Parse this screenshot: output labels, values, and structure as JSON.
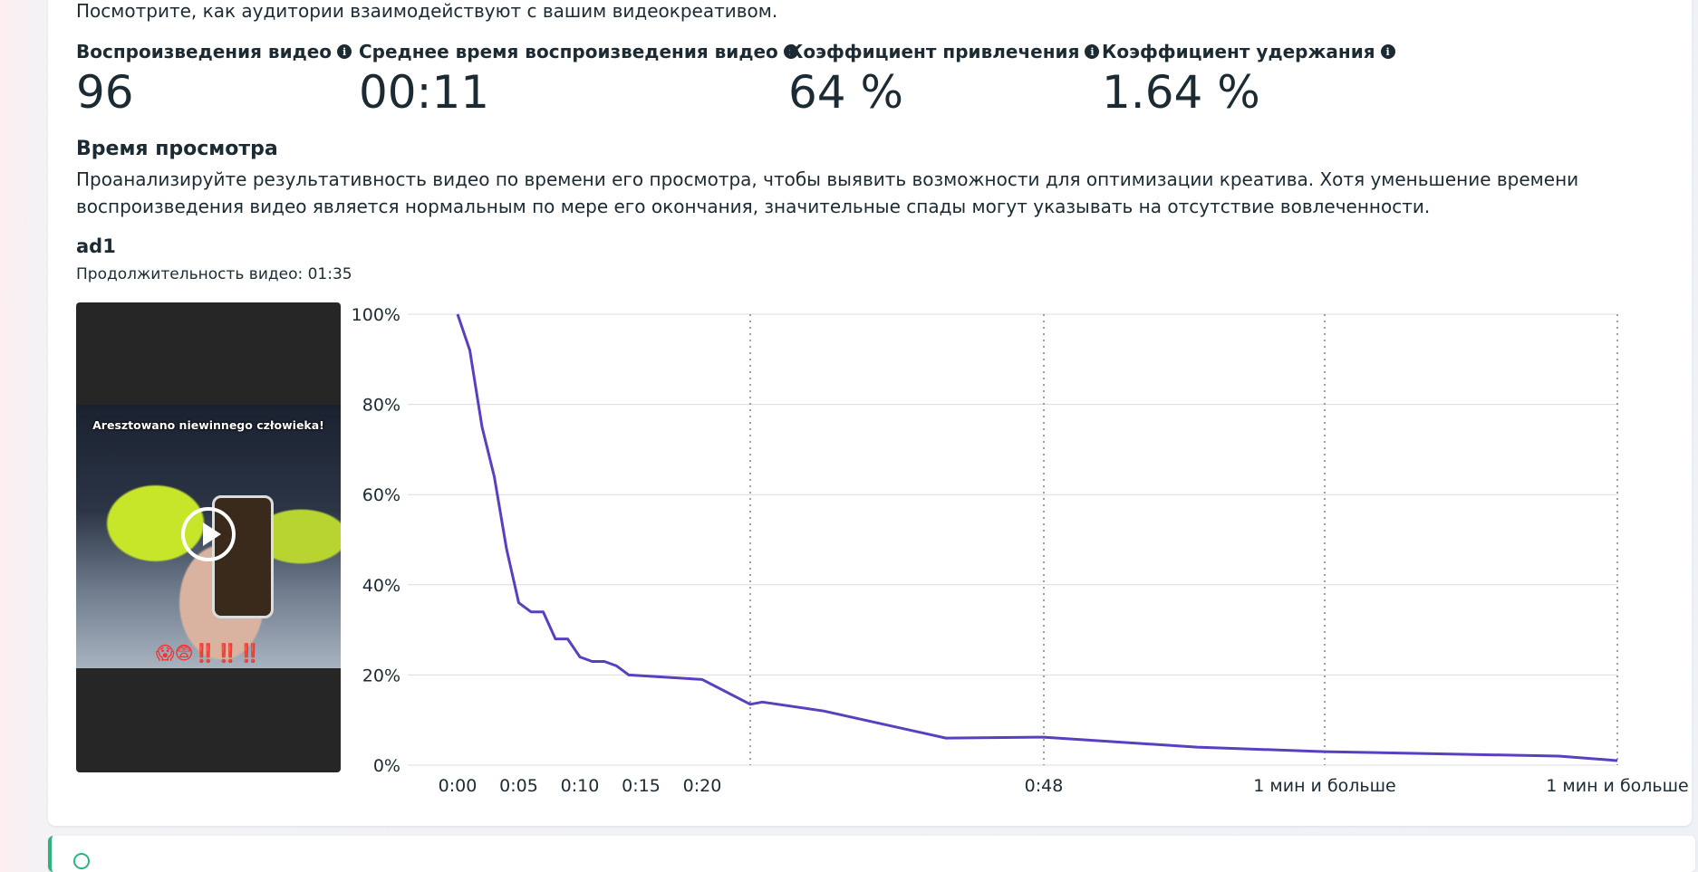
{
  "header": {
    "intro": "Посмотрите, как аудитории взаимодействуют с вашим видеокреативом."
  },
  "metrics": [
    {
      "label": "Воспроизведения видео",
      "value": "96"
    },
    {
      "label": "Среднее время воспроизведения видео",
      "value": "00:11"
    },
    {
      "label": "Коэффициент привлечения",
      "value": "64 %"
    },
    {
      "label": "Коэффициент удержания",
      "value": "1.64 %"
    }
  ],
  "watch_time": {
    "title": "Время просмотра",
    "description": "Проанализируйте результативность видео по времени его просмотра, чтобы выявить возможности для оптимизации креатива. Хотя уменьшение времени воспроизведения видео является нормальным по мере его окончания, значительные спады могут указывать на отсутствие вовлеченности."
  },
  "ad": {
    "name": "ad1",
    "duration": "Продолжительность видео: 01:35",
    "thumbnail_caption": "Aresztowano niewinnego człowieka!",
    "thumbnail_emoji": "😱😨‼️‼️‼️"
  },
  "colors": {
    "line": "#5a3fc0",
    "accent_green": "#2fb37d"
  },
  "chart_data": {
    "type": "line",
    "title": "",
    "xlabel": "",
    "ylabel": "",
    "ylim": [
      0,
      100
    ],
    "y_ticks": [
      "0%",
      "20%",
      "40%",
      "60%",
      "80%",
      "100%"
    ],
    "x_tick_labels": [
      "0:00",
      "0:05",
      "0:10",
      "0:15",
      "0:20",
      "0:48",
      "1 мин и больше",
      "1 мин и больше"
    ],
    "grid": true,
    "series": [
      {
        "values": [
          {
            "t": "0:00",
            "y": 100
          },
          {
            "t": "0:01",
            "y": 92
          },
          {
            "t": "0:02",
            "y": 75
          },
          {
            "t": "0:03",
            "y": 64
          },
          {
            "t": "0:04",
            "y": 48
          },
          {
            "t": "0:05",
            "y": 36
          },
          {
            "t": "0:06",
            "y": 34
          },
          {
            "t": "0:07",
            "y": 34
          },
          {
            "t": "0:08",
            "y": 28
          },
          {
            "t": "0:09",
            "y": 28
          },
          {
            "t": "0:10",
            "y": 24
          },
          {
            "t": "0:11",
            "y": 23
          },
          {
            "t": "0:12",
            "y": 23
          },
          {
            "t": "0:13",
            "y": 22
          },
          {
            "t": "0:14",
            "y": 20
          },
          {
            "t": "0:20",
            "y": 19
          },
          {
            "t": "0:24",
            "y": 13.5
          },
          {
            "t": "0:25",
            "y": 14
          },
          {
            "t": "0:30",
            "y": 12
          },
          {
            "t": "0:40",
            "y": 6
          },
          {
            "t": "0:48",
            "y": 6.2
          },
          {
            "t": "1:00",
            "y": 4
          },
          {
            "t": "1:10",
            "y": 3
          },
          {
            "t": "1:30",
            "y": 2
          },
          {
            "t": "1:35",
            "y": 1
          }
        ]
      }
    ]
  }
}
